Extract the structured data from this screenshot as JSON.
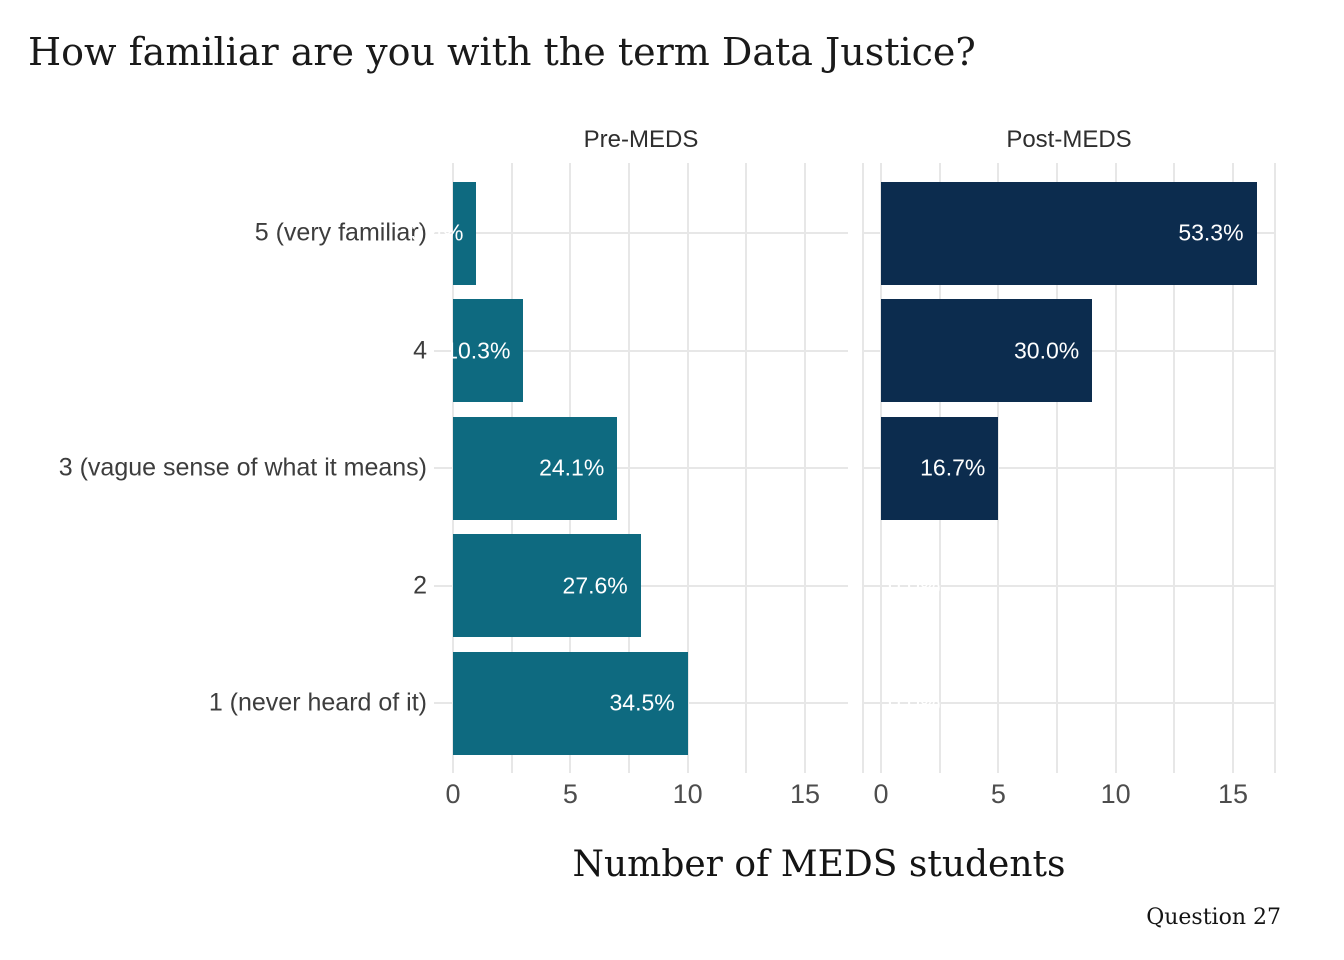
{
  "title": "How familiar are you with the term Data Justice?",
  "x_axis_title": "Number of MEDS students",
  "caption": "Question 27",
  "chart_data": {
    "type": "bar",
    "orientation": "horizontal",
    "title": "How familiar are you with the term Data Justice?",
    "xlabel": "Number of MEDS students",
    "ylabel": "",
    "categories": [
      "5 (very familiar)",
      "4",
      "3 (vague sense of what it means)",
      "2",
      "1 (never heard of it)"
    ],
    "facets": [
      {
        "name": "Pre-MEDS",
        "bar_color": "#0E6A80",
        "values": [
          1,
          3,
          7,
          8,
          10
        ],
        "percent_labels": [
          "3.4%",
          "10.3%",
          "24.1%",
          "27.6%",
          "34.5%"
        ]
      },
      {
        "name": "Post-MEDS",
        "bar_color": "#0C2C4E",
        "values": [
          16,
          9,
          5,
          0,
          0
        ],
        "percent_labels": [
          "53.3%",
          "30.0%",
          "16.7%",
          "0.0%",
          "0.0%"
        ]
      }
    ],
    "x_ticks": [
      0,
      5,
      10,
      15
    ],
    "xlim": [
      -0.8,
      16.8
    ],
    "grid": true,
    "grid_step": 2.5,
    "gridline_color": "#E7E7E7",
    "bar_label_color": "#FFFFFF",
    "legend": "none"
  }
}
